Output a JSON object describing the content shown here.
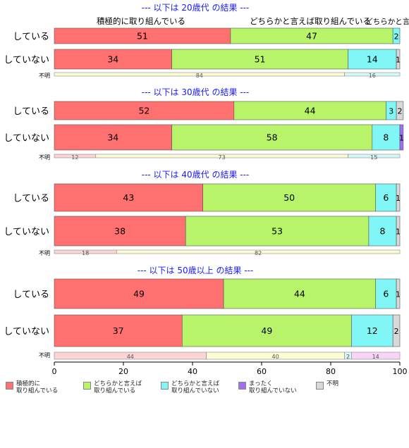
{
  "chart_data": {
    "type": "bar",
    "orientation": "horizontal",
    "stacked": true,
    "xlim": [
      0,
      100
    ],
    "xticks": [
      0,
      20,
      40,
      60,
      80,
      100
    ],
    "top_labels": {
      "positive": "積極的に取り組んでいる",
      "somewhat": "どちらかと言えば取り組んでいる",
      "not": "どちらかと言え..."
    },
    "categories_legend": [
      {
        "key": "positive",
        "label": "積極的に\n取り組んでいる",
        "color": "#ff7070"
      },
      {
        "key": "somewhat",
        "label": "どちらかと言えば\n取り組んでいる",
        "color": "#b8f46a"
      },
      {
        "key": "negative",
        "label": "どちらかと言えば\n取り組んでいない",
        "color": "#80f6f6"
      },
      {
        "key": "none",
        "label": "まったく\n取り組んでいない",
        "color": "#a070f0"
      },
      {
        "key": "unknown",
        "label": "不明",
        "color": "#d8d8d8"
      }
    ],
    "groups": [
      {
        "title": "--- 以下は 20歳代 の結果 ---",
        "rows": [
          {
            "label": "している",
            "values": [
              51,
              47,
              2,
              0,
              0
            ]
          },
          {
            "label": "していない",
            "values": [
              34,
              51,
              14,
              0,
              1
            ]
          }
        ],
        "unknown_label": "不明",
        "unknown_values": [
          0,
          84,
          16,
          0,
          0
        ]
      },
      {
        "title": "--- 以下は 30歳代 の結果 ---",
        "rows": [
          {
            "label": "している",
            "values": [
              52,
              44,
              3,
              0,
              2
            ]
          },
          {
            "label": "していない",
            "values": [
              34,
              58,
              8,
              1,
              0
            ]
          }
        ],
        "unknown_label": "不明",
        "unknown_values": [
          12,
          73,
          15,
          0,
          0
        ]
      },
      {
        "title": "--- 以下は 40歳代 の結果 ---",
        "rows": [
          {
            "label": "している",
            "values": [
              43,
              50,
              6,
              0,
              1
            ]
          },
          {
            "label": "していない",
            "values": [
              38,
              53,
              8,
              0,
              1
            ]
          }
        ],
        "unknown_label": "不明",
        "unknown_values": [
          18,
          82,
          0,
          0,
          0
        ]
      },
      {
        "title": "--- 以下は 50歳以上 の結果 ---",
        "rows": [
          {
            "label": "している",
            "values": [
              49,
              44,
              6,
              0,
              1
            ]
          },
          {
            "label": "していない",
            "values": [
              37,
              49,
              12,
              0,
              2
            ]
          }
        ],
        "unknown_label": "不明",
        "unknown_values": [
          44,
          40,
          2,
          14,
          0
        ]
      }
    ],
    "text_hidden_threshold": 1
  }
}
